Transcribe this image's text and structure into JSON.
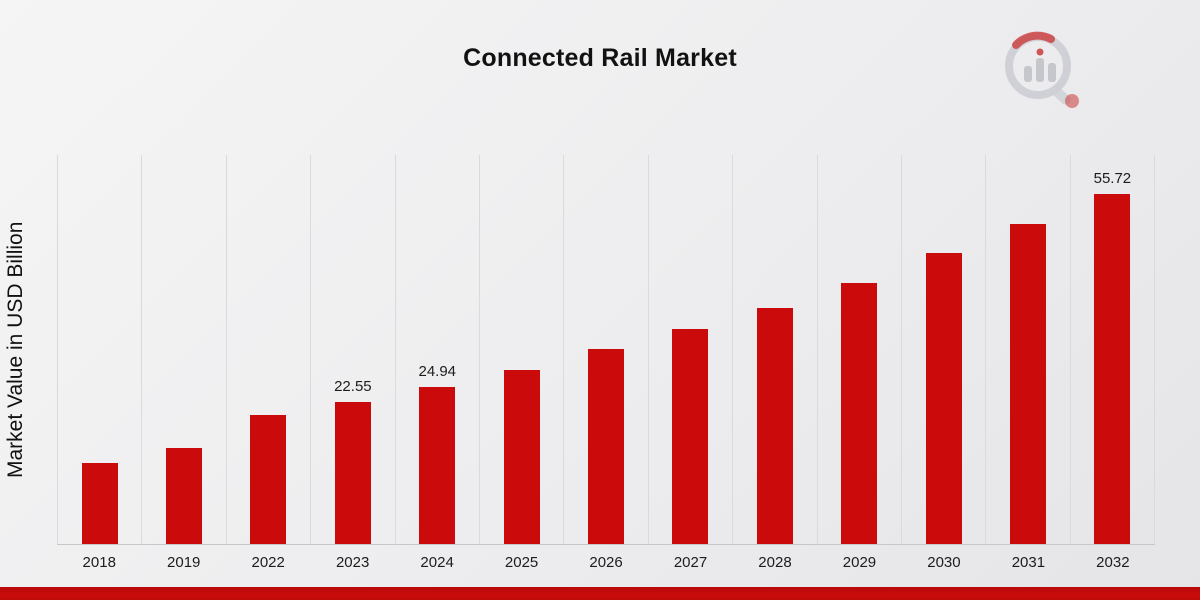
{
  "title": "Connected Rail Market",
  "ylabel": "Market Value in USD Billion",
  "branding": {
    "logo_icon": "market-research-chart-magnifier-logo"
  },
  "colors": {
    "bar": "#cb0b0b",
    "bottom_stripe": "#cb0b0b",
    "background": "#ededef",
    "gridline": "#dadadc",
    "text": "#121212"
  },
  "chart_data": {
    "type": "bar",
    "title": "Connected Rail Market",
    "xlabel": "",
    "ylabel": "Market Value in USD Billion",
    "categories": [
      "2018",
      "2019",
      "2022",
      "2023",
      "2024",
      "2025",
      "2026",
      "2027",
      "2028",
      "2029",
      "2030",
      "2031",
      "2032"
    ],
    "values": [
      12.9,
      15.2,
      20.5,
      22.55,
      24.94,
      27.6,
      31.0,
      34.2,
      37.5,
      41.5,
      46.2,
      50.9,
      55.72
    ],
    "value_labels": {
      "2023": "22.55",
      "2024": "24.94",
      "2032": "55.72"
    },
    "ylim": [
      0,
      62
    ],
    "grid": "vertical",
    "legend": "none",
    "bar_color": "#cb0b0b"
  }
}
